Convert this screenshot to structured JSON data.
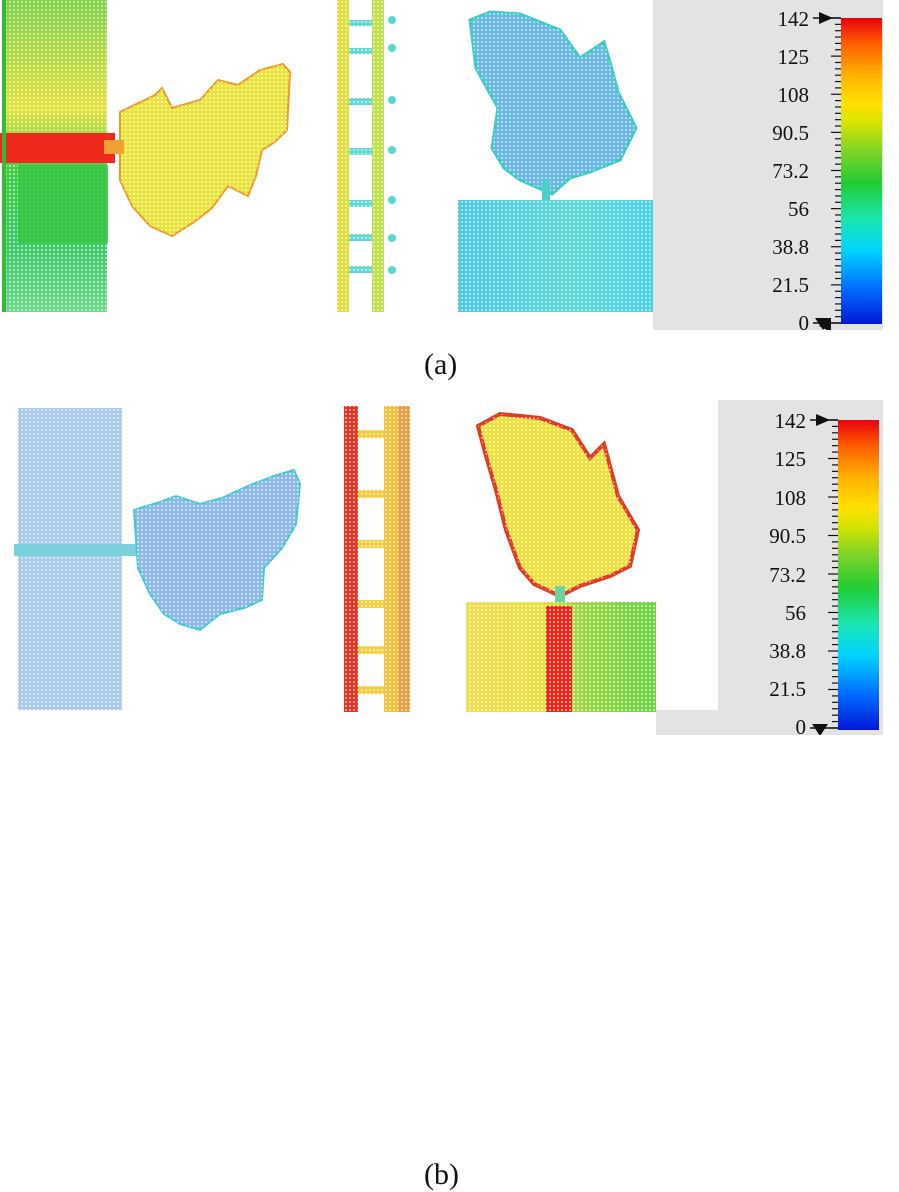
{
  "panels": [
    {
      "caption": "(a)",
      "colorbar": {
        "ticks": [
          "142",
          "125",
          "108",
          "90.5",
          "73.2",
          "56",
          "38.8",
          "21.5",
          "0"
        ],
        "min": 0,
        "max": 142
      },
      "regions": [
        {
          "name": "left-block",
          "color": "#d6e04a"
        },
        {
          "name": "left-block-hotspot",
          "color": "#ee2a1c"
        },
        {
          "name": "left-leaf-shape",
          "color": "#e8e43a"
        },
        {
          "name": "center-comb",
          "color": "#cfe35a"
        },
        {
          "name": "right-leaf-shape",
          "color": "#6ab8e8"
        },
        {
          "name": "right-base-block",
          "color": "#5fd8e0"
        }
      ]
    },
    {
      "caption": "(b)",
      "colorbar": {
        "ticks": [
          "142",
          "125",
          "108",
          "90.5",
          "73.2",
          "56",
          "38.8",
          "21.5",
          "0"
        ],
        "min": 0,
        "max": 142
      },
      "regions": [
        {
          "name": "left-block",
          "color": "#9cc6ee"
        },
        {
          "name": "left-leaf-shape",
          "color": "#7bb2ea"
        },
        {
          "name": "center-comb",
          "color": "#f0c23a"
        },
        {
          "name": "right-leaf-shape",
          "color": "#eee03a"
        },
        {
          "name": "right-base-block",
          "color": "#e8e040"
        },
        {
          "name": "right-base-hotspot",
          "color": "#ee2218"
        }
      ]
    }
  ]
}
